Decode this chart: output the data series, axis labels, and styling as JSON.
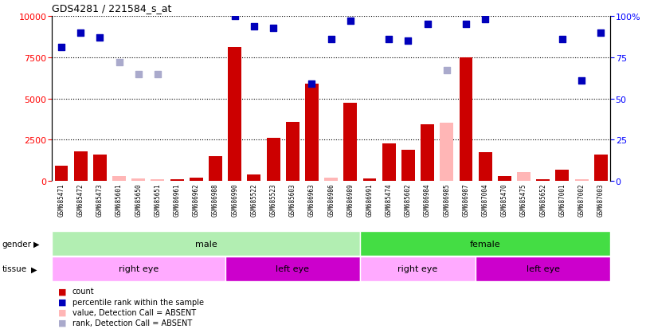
{
  "title": "GDS4281 / 221584_s_at",
  "samples": [
    "GSM685471",
    "GSM685472",
    "GSM685473",
    "GSM685601",
    "GSM685650",
    "GSM685651",
    "GSM686961",
    "GSM686962",
    "GSM686988",
    "GSM686990",
    "GSM685522",
    "GSM685523",
    "GSM685603",
    "GSM686963",
    "GSM686986",
    "GSM686989",
    "GSM686991",
    "GSM685474",
    "GSM685602",
    "GSM686984",
    "GSM686985",
    "GSM686987",
    "GSM687004",
    "GSM685470",
    "GSM685475",
    "GSM685652",
    "GSM687001",
    "GSM687002",
    "GSM687003"
  ],
  "counts": [
    900,
    1800,
    1600,
    300,
    150,
    100,
    80,
    200,
    1500,
    8100,
    400,
    2600,
    3600,
    5900,
    200,
    4750,
    150,
    2300,
    1900,
    3450,
    3550,
    7500,
    1750,
    300,
    550,
    100,
    700,
    100,
    1600
  ],
  "absent_count_mask": [
    false,
    false,
    false,
    true,
    true,
    true,
    false,
    false,
    false,
    false,
    false,
    false,
    false,
    false,
    true,
    false,
    false,
    false,
    false,
    false,
    true,
    false,
    false,
    false,
    true,
    false,
    false,
    true,
    false
  ],
  "dots": [
    8100,
    9000,
    8700,
    7200,
    6500,
    6500,
    null,
    null,
    null,
    10000,
    9400,
    9300,
    null,
    5900,
    8600,
    9700,
    null,
    8600,
    8500,
    9500,
    6700,
    9500,
    9800,
    null,
    null,
    null,
    8600,
    6100,
    9000
  ],
  "absent_dot_mask": [
    false,
    false,
    false,
    true,
    true,
    true,
    true,
    true,
    true,
    false,
    false,
    false,
    true,
    false,
    false,
    false,
    true,
    false,
    false,
    false,
    true,
    false,
    false,
    true,
    true,
    true,
    false,
    false,
    false
  ],
  "gender_groups": [
    {
      "label": "male",
      "start": 0,
      "end": 16,
      "color": "#B2EEB2"
    },
    {
      "label": "female",
      "start": 16,
      "end": 29,
      "color": "#44DD44"
    }
  ],
  "tissue_groups": [
    {
      "label": "right eye",
      "start": 0,
      "end": 9,
      "color": "#FFAAFF"
    },
    {
      "label": "left eye",
      "start": 9,
      "end": 16,
      "color": "#CC00CC"
    },
    {
      "label": "right eye",
      "start": 16,
      "end": 22,
      "color": "#FFAAFF"
    },
    {
      "label": "left eye",
      "start": 22,
      "end": 29,
      "color": "#CC00CC"
    }
  ],
  "bar_color": "#CC0000",
  "absent_bar_color": "#FFB6B6",
  "dot_color": "#0000BB",
  "absent_dot_color": "#AAAACC",
  "ylim_left": [
    0,
    10000
  ],
  "ylim_right": [
    0,
    100
  ],
  "yticks_left": [
    0,
    2500,
    5000,
    7500,
    10000
  ],
  "yticks_right": [
    0,
    25,
    50,
    75,
    100
  ],
  "grid_lines": [
    2500,
    5000,
    7500,
    10000
  ],
  "background_color": "#D3D3D3"
}
